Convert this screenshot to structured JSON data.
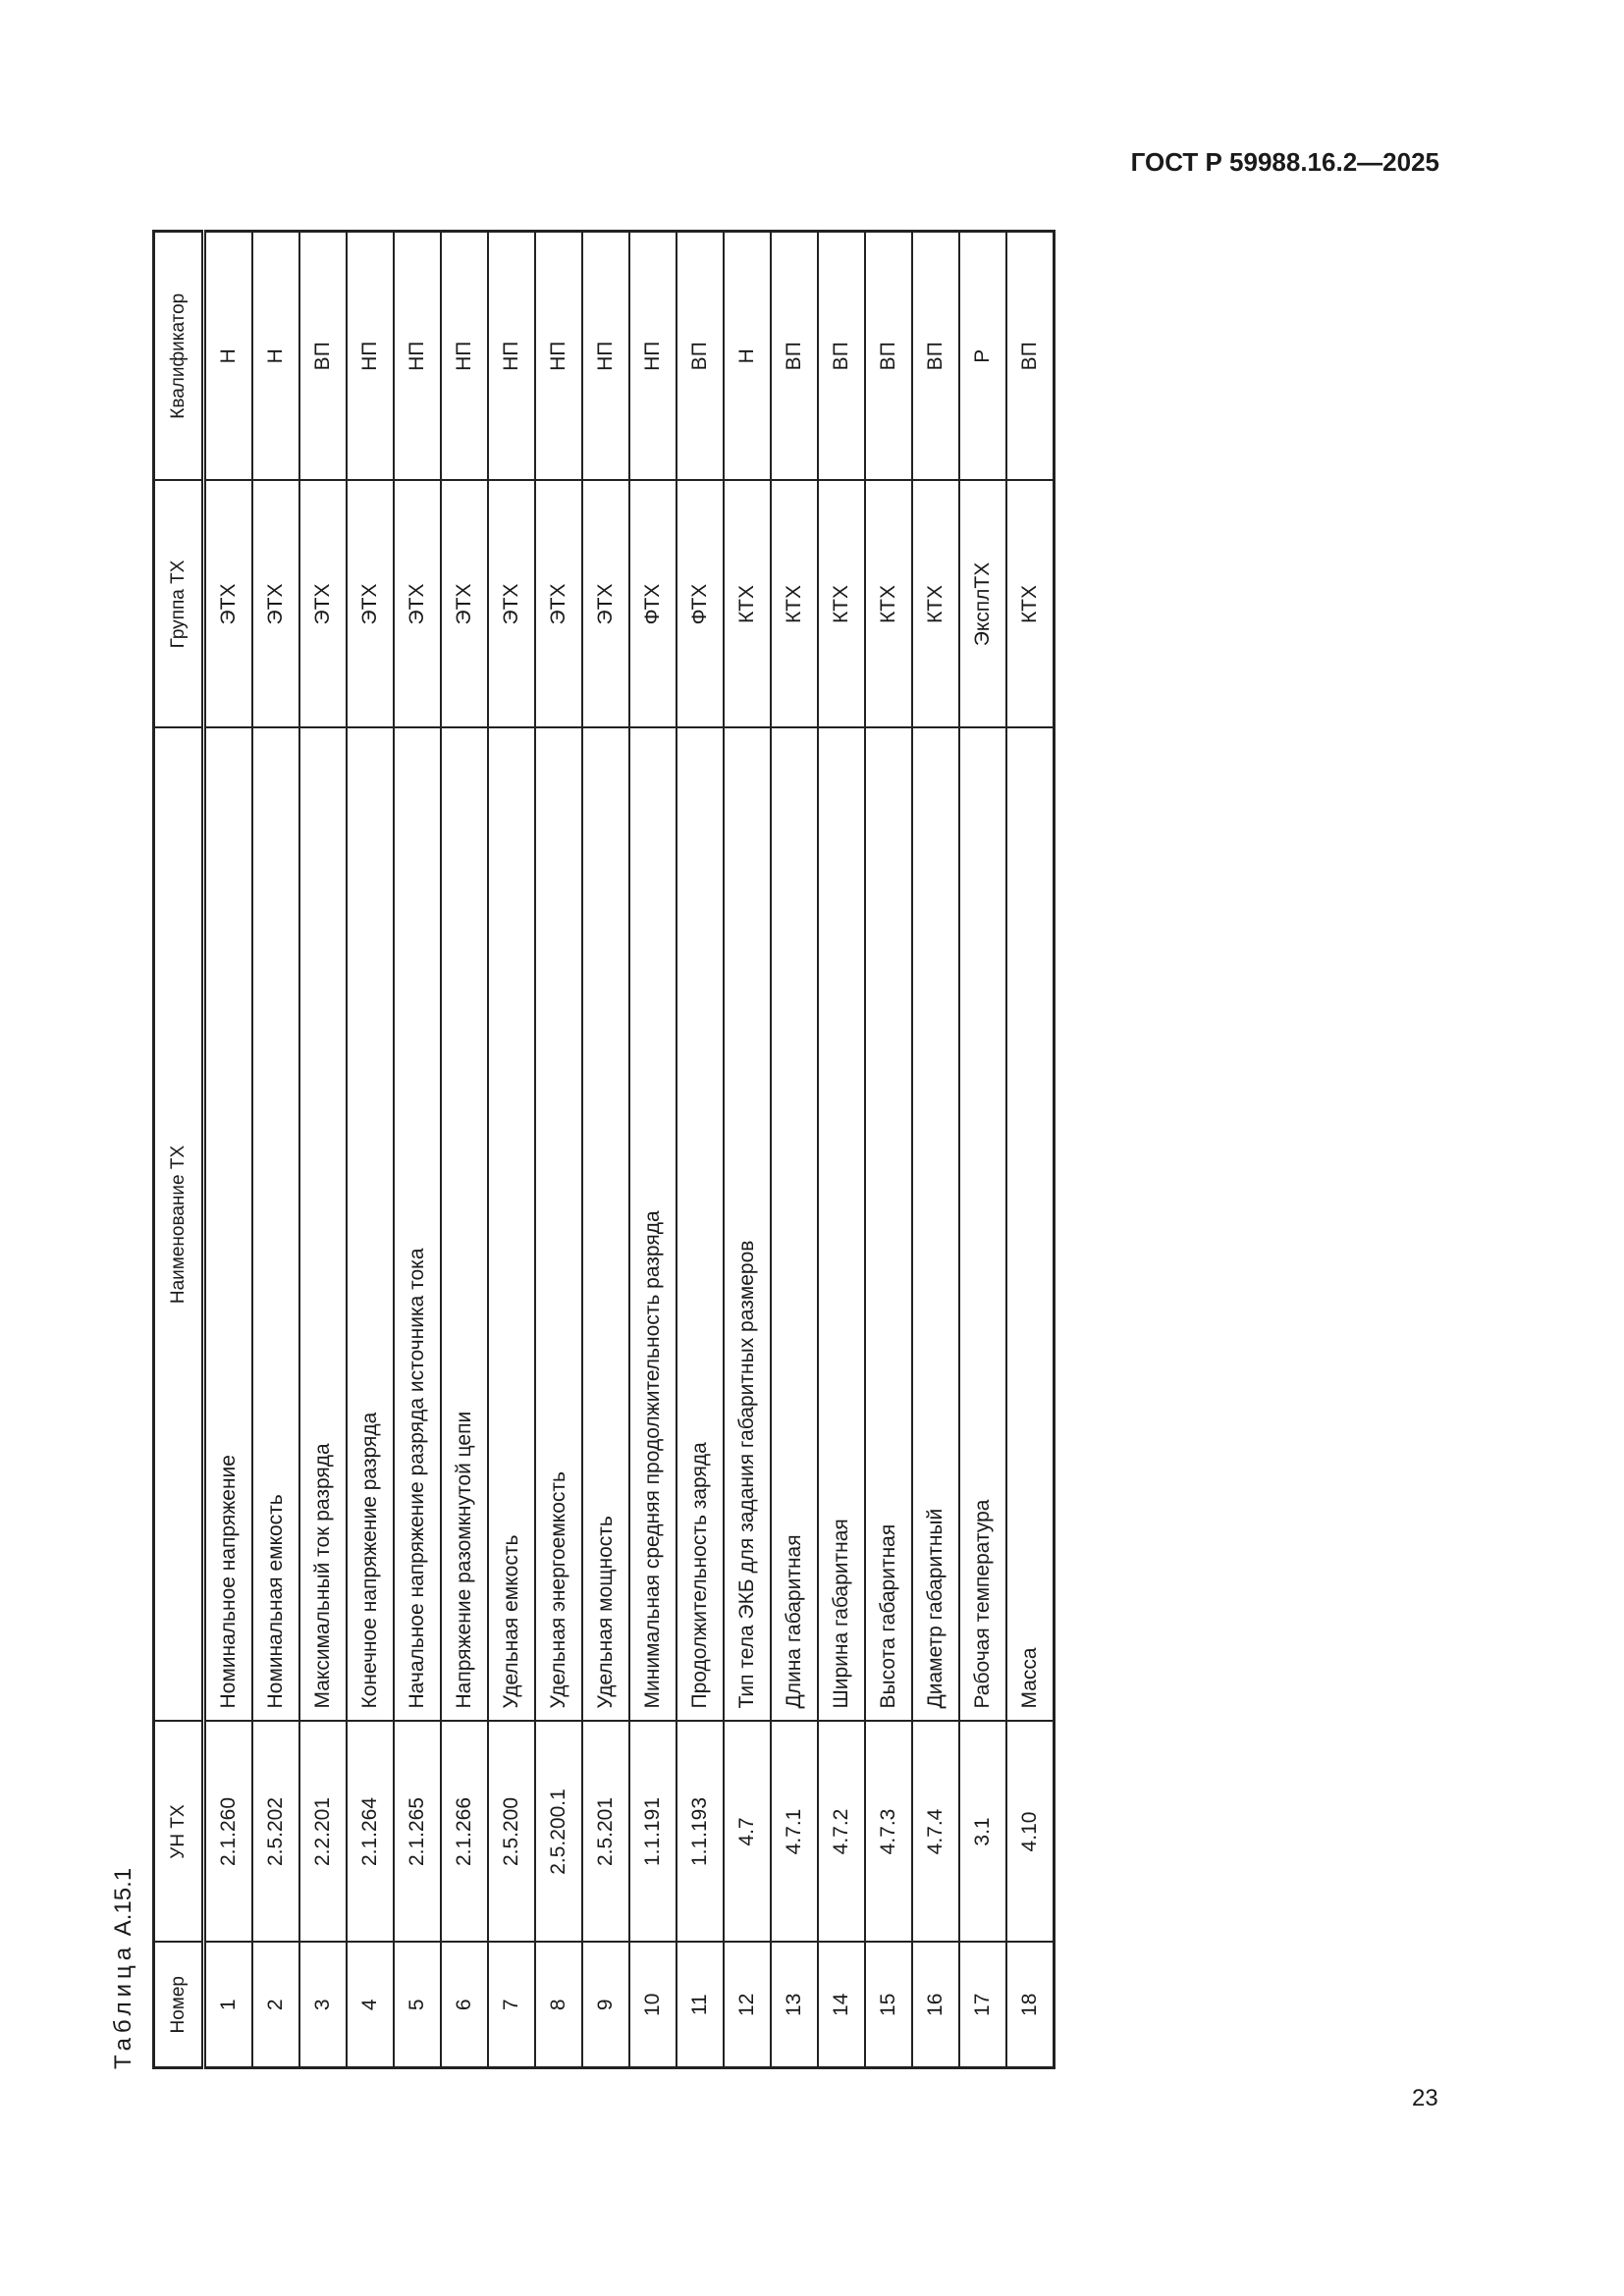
{
  "header": {
    "doc_code": "ГОСТ Р 59988.16.2—2025"
  },
  "caption": {
    "prefix": "Таблица",
    "number": "А.15.1"
  },
  "table": {
    "columns": [
      "Номер",
      "УН ТХ",
      "Наименование ТХ",
      "Группа ТХ",
      "Квалификатор"
    ],
    "rows": [
      [
        "1",
        "2.1.260",
        "Номинальное напряжение",
        "ЭТХ",
        "Н"
      ],
      [
        "2",
        "2.5.202",
        "Номинальная емкость",
        "ЭТХ",
        "Н"
      ],
      [
        "3",
        "2.2.201",
        "Максимальный ток разряда",
        "ЭТХ",
        "ВП"
      ],
      [
        "4",
        "2.1.264",
        "Конечное напряжение разряда",
        "ЭТХ",
        "НП"
      ],
      [
        "5",
        "2.1.265",
        "Начальное напряжение разряда источника тока",
        "ЭТХ",
        "НП"
      ],
      [
        "6",
        "2.1.266",
        "Напряжение разомкнутой цепи",
        "ЭТХ",
        "НП"
      ],
      [
        "7",
        "2.5.200",
        "Удельная емкость",
        "ЭТХ",
        "НП"
      ],
      [
        "8",
        "2.5.200.1",
        "Удельная энергоемкость",
        "ЭТХ",
        "НП"
      ],
      [
        "9",
        "2.5.201",
        "Удельная мощность",
        "ЭТХ",
        "НП"
      ],
      [
        "10",
        "1.1.191",
        "Минимальная средняя продолжительность разряда",
        "ФТХ",
        "НП"
      ],
      [
        "11",
        "1.1.193",
        "Продолжительность заряда",
        "ФТХ",
        "ВП"
      ],
      [
        "12",
        "4.7",
        "Тип тела ЭКБ для задания габаритных размеров",
        "КТХ",
        "Н"
      ],
      [
        "13",
        "4.7.1",
        "Длина габаритная",
        "КТХ",
        "ВП"
      ],
      [
        "14",
        "4.7.2",
        "Ширина габаритная",
        "КТХ",
        "ВП"
      ],
      [
        "15",
        "4.7.3",
        "Высота габаритная",
        "КТХ",
        "ВП"
      ],
      [
        "16",
        "4.7.4",
        "Диаметр габаритный",
        "КТХ",
        "ВП"
      ],
      [
        "17",
        "3.1",
        "Рабочая температура",
        "ЭксплТХ",
        "Р"
      ],
      [
        "18",
        "4.10",
        "Масса",
        "КТХ",
        "ВП"
      ]
    ]
  },
  "footer": {
    "page_number": "23"
  }
}
